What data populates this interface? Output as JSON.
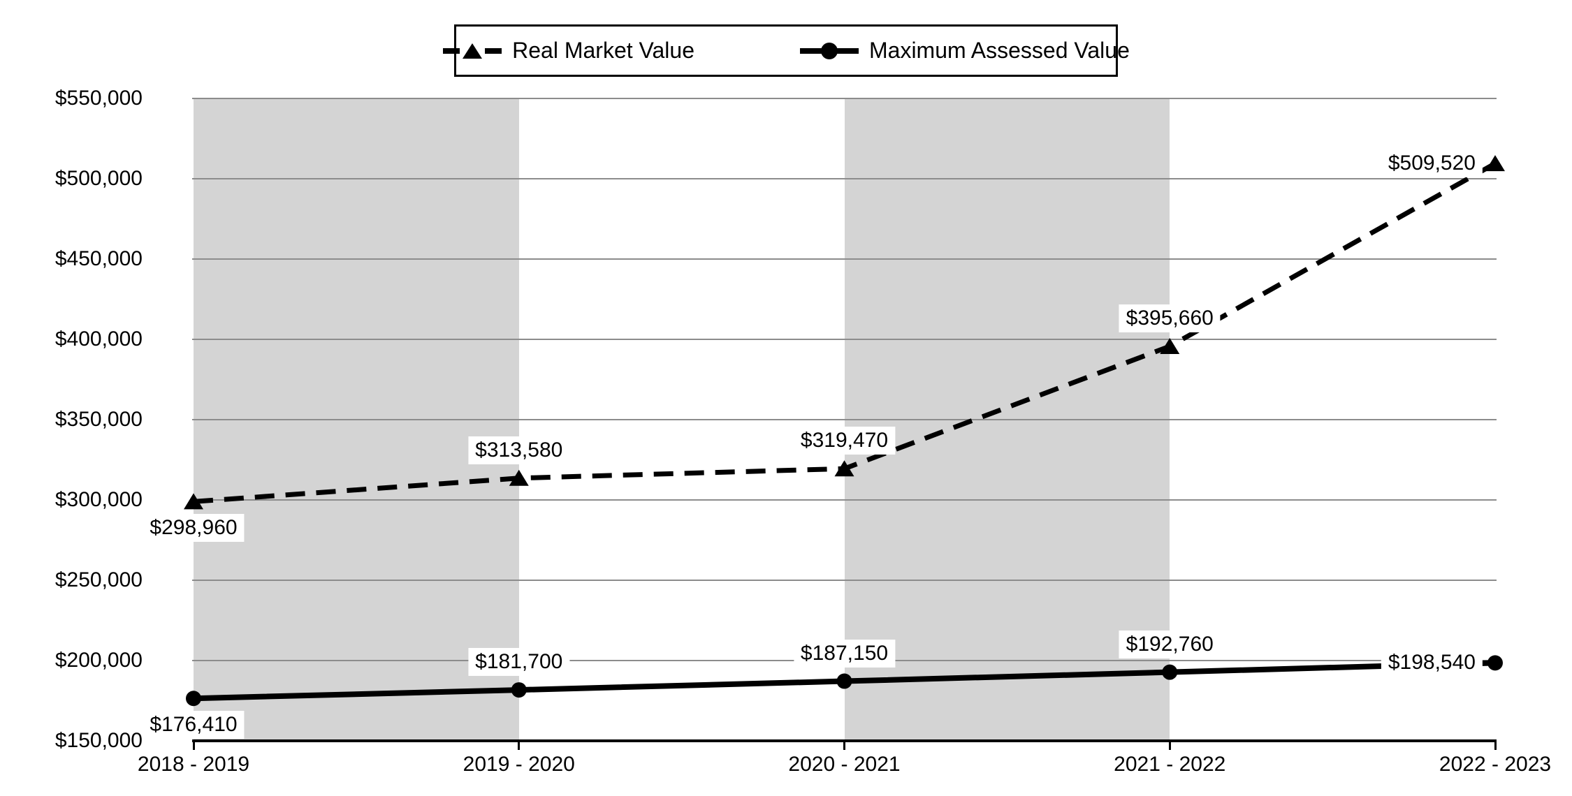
{
  "chart_data": {
    "type": "line",
    "title": "",
    "categories": [
      "2018 - 2019",
      "2019 - 2020",
      "2020 - 2021",
      "2021 - 2022",
      "2022 - 2023"
    ],
    "series": [
      {
        "name": "Real Market Value",
        "line_style": "dashed",
        "marker": "triangle",
        "color": "#000000",
        "values": [
          298960,
          313580,
          319470,
          395660,
          509520
        ],
        "data_labels": [
          "$298,960",
          "$313,580",
          "$319,470",
          "$395,660",
          "$509,520"
        ],
        "label_positions": [
          "below",
          "above",
          "above",
          "above",
          "left"
        ]
      },
      {
        "name": "Maximum Assessed Value",
        "line_style": "solid",
        "marker": "circle",
        "color": "#000000",
        "values": [
          176410,
          181700,
          187150,
          192760,
          198540
        ],
        "data_labels": [
          "$176,410",
          "$181,700",
          "$187,150",
          "$192,760",
          "$198,540"
        ],
        "label_positions": [
          "below",
          "above",
          "above",
          "above",
          "left"
        ]
      }
    ],
    "y_axis": {
      "min": 150000,
      "max": 550000,
      "step": 50000,
      "tick_labels": [
        "$150,000",
        "$200,000",
        "$250,000",
        "$300,000",
        "$350,000",
        "$400,000",
        "$450,000",
        "$500,000",
        "$550,000"
      ]
    },
    "x_axis": {
      "tick_labels": [
        "2018 - 2019",
        "2019 - 2020",
        "2020 - 2021",
        "2021 - 2022",
        "2022 - 2023"
      ]
    },
    "grid": true,
    "legend_position": "top-center",
    "plot_bands": {
      "color": "#d4d4d4",
      "category_ranges": [
        [
          0,
          1
        ],
        [
          2,
          3
        ]
      ]
    },
    "colors": {
      "series": "#000000",
      "gridline": "#8c8c8c",
      "band": "#d4d4d4",
      "background": "#ffffff"
    }
  }
}
